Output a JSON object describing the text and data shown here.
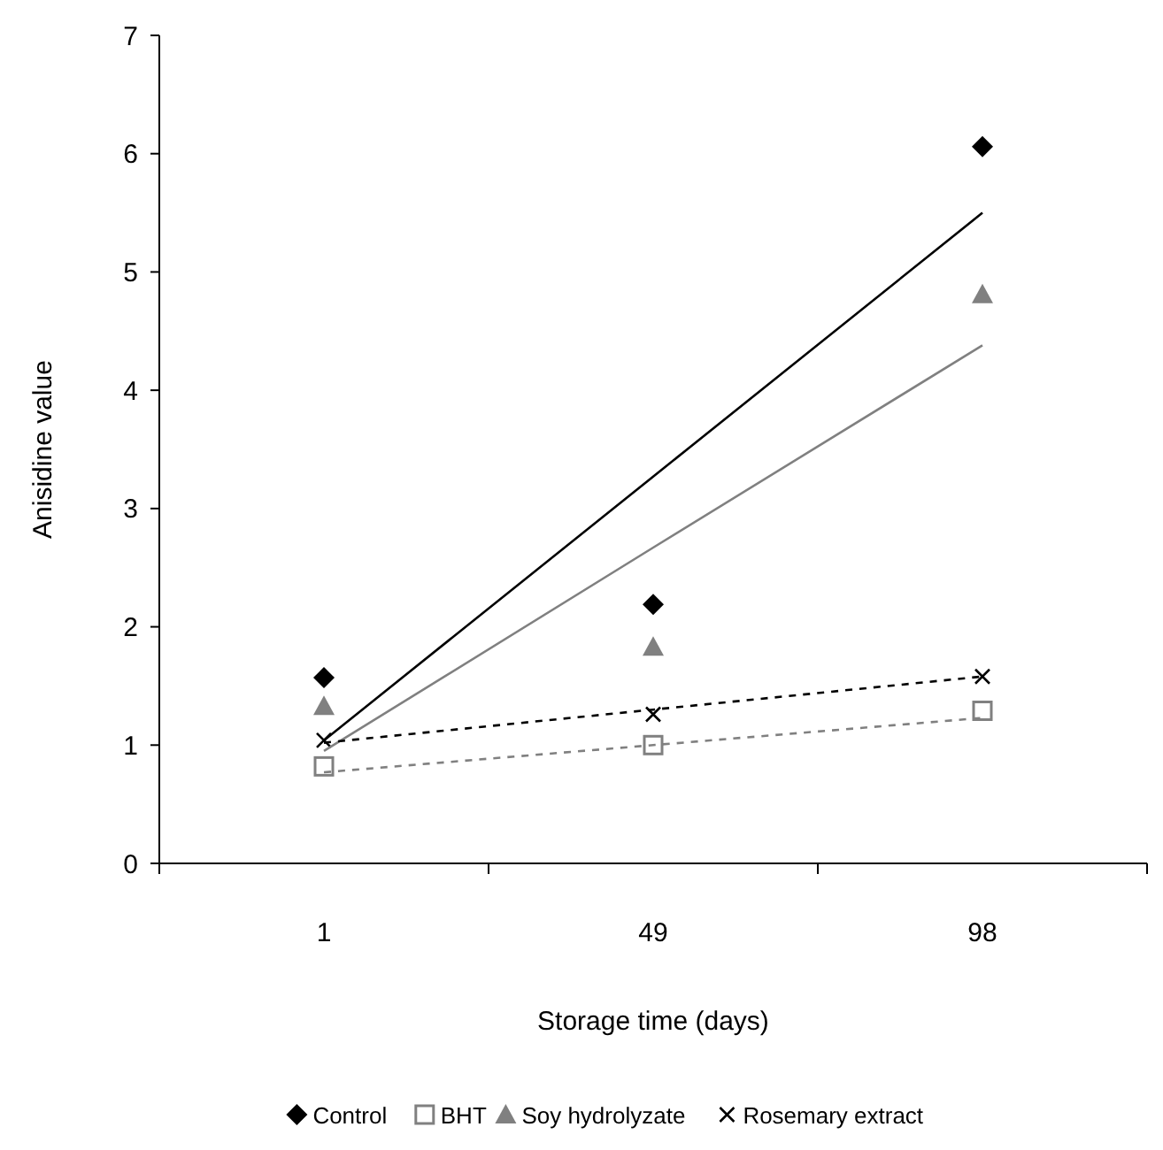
{
  "chart_data": {
    "type": "scatter",
    "xlabel": "Storage time (days)",
    "ylabel": "Anisidine value",
    "categories": [
      "1",
      "49",
      "98"
    ],
    "ylim": [
      0,
      7
    ],
    "yticks": [
      0,
      1,
      2,
      3,
      4,
      5,
      6,
      7
    ],
    "grid": false,
    "legend": "bottom",
    "series": [
      {
        "name": "Control",
        "marker": "diamond",
        "color": "#000000",
        "values": [
          1.57,
          2.19,
          6.06
        ]
      },
      {
        "name": "BHT",
        "marker": "square",
        "color": "#808080",
        "values": [
          0.82,
          1.0,
          1.29
        ]
      },
      {
        "name": "Soy hydrolyzate",
        "marker": "triangle",
        "color": "#808080",
        "values": [
          1.33,
          1.83,
          4.81
        ]
      },
      {
        "name": "Rosemary extract",
        "marker": "cross",
        "color": "#000000",
        "values": [
          1.04,
          1.26,
          1.58
        ]
      },
      {
        "type": "line",
        "marker": "none",
        "line_style": "solid",
        "color": "#000000",
        "values": [
          1.04,
          3.27,
          5.5
        ]
      },
      {
        "type": "line",
        "marker": "none",
        "line_style": "dashed",
        "color": "#808080",
        "values": [
          0.77,
          1.0,
          1.23
        ]
      },
      {
        "type": "line",
        "marker": "none",
        "line_style": "solid",
        "color": "#808080",
        "values": [
          0.95,
          2.67,
          4.38
        ]
      },
      {
        "type": "line",
        "marker": "none",
        "line_style": "dashed",
        "color": "#000000",
        "values": [
          1.02,
          1.3,
          1.58
        ]
      }
    ]
  }
}
